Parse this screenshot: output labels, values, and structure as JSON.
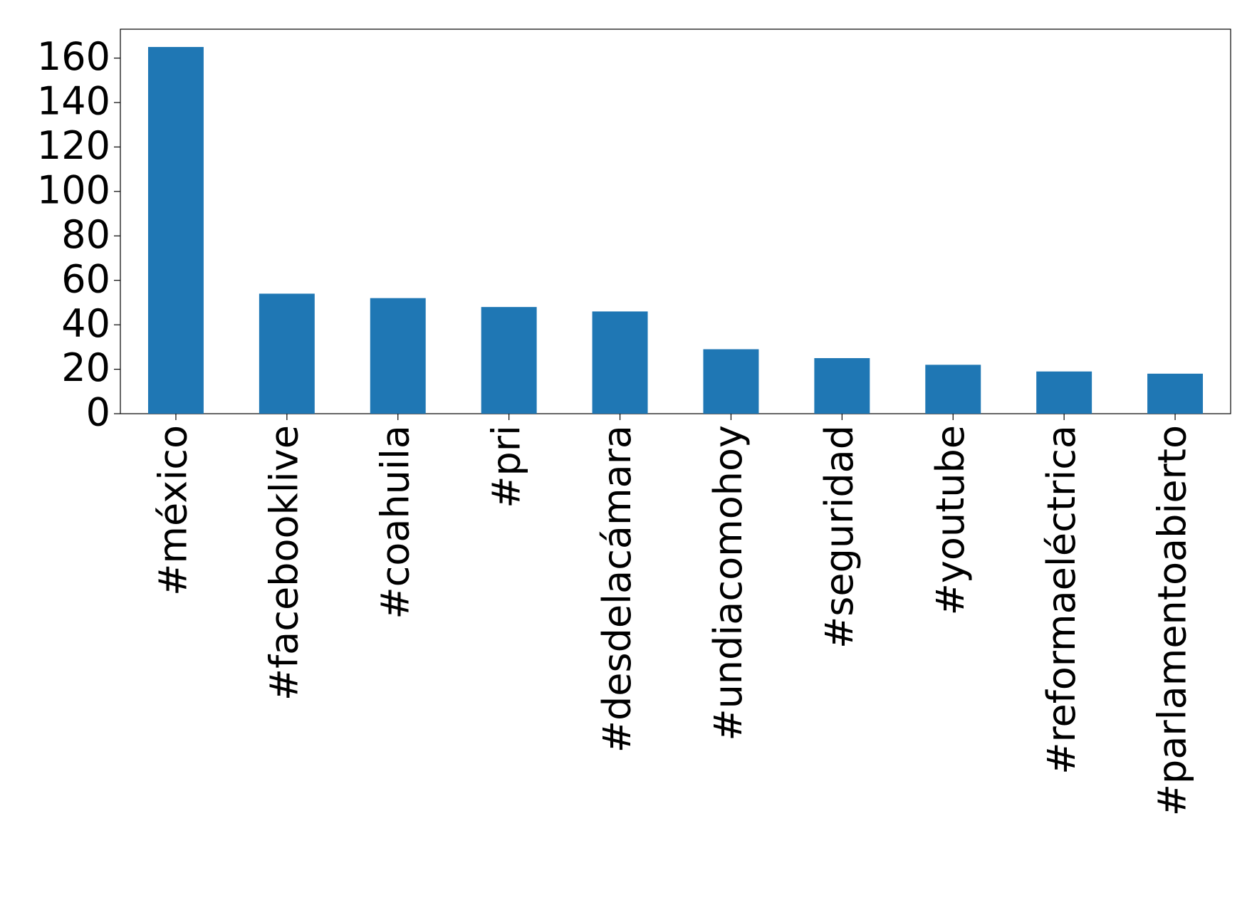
{
  "chart_data": {
    "type": "bar",
    "categories": [
      "#méxico",
      "#facebooklive",
      "#coahuila",
      "#pri",
      "#desdelacámara",
      "#undiacomohoy",
      "#seguridad",
      "#youtube",
      "#reformaeléctrica",
      "#parlamentoabierto"
    ],
    "values": [
      165,
      54,
      52,
      48,
      46,
      29,
      25,
      22,
      19,
      18
    ],
    "color": "#1f77b4",
    "ylim": [
      0,
      173
    ],
    "yticks": [
      0,
      20,
      40,
      60,
      80,
      100,
      120,
      140,
      160
    ],
    "grid": false
  }
}
